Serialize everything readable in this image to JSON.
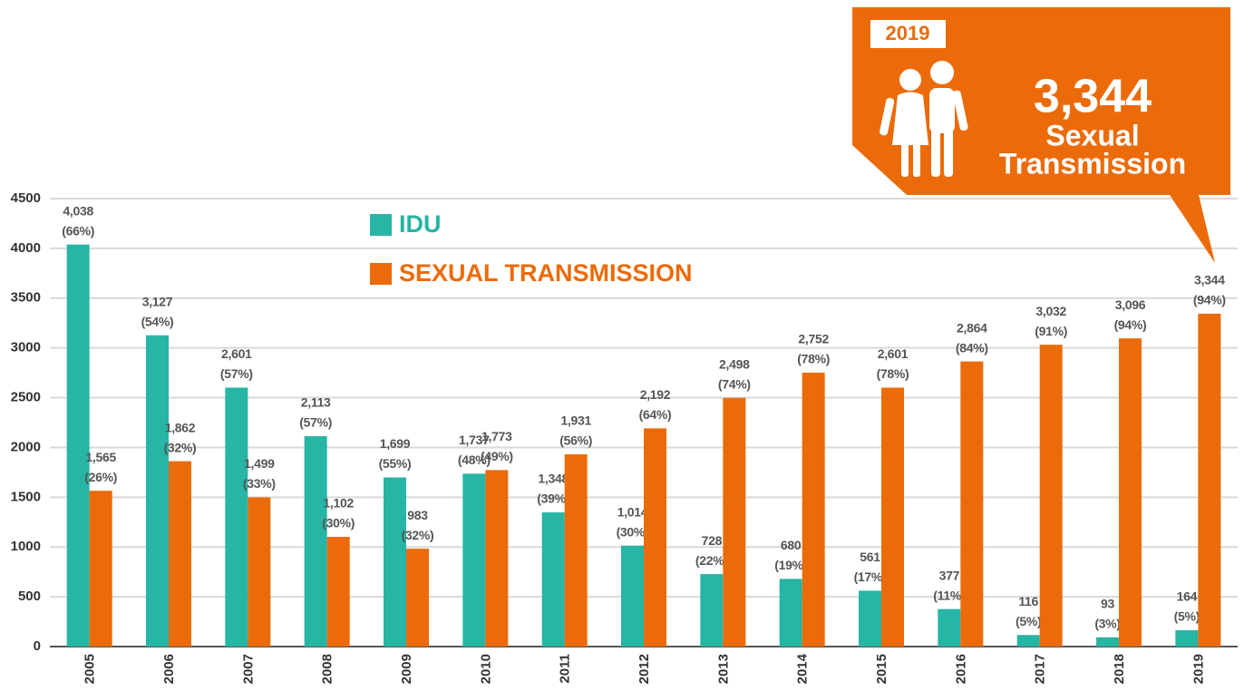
{
  "chart_data": {
    "type": "bar",
    "categories": [
      "2005",
      "2006",
      "2007",
      "2008",
      "2009",
      "2010",
      "2011",
      "2012",
      "2013",
      "2014",
      "2015",
      "2016",
      "2017",
      "2018",
      "2019"
    ],
    "series": [
      {
        "name": "IDU",
        "color": "#27b5a5",
        "values": [
          4038,
          3127,
          2601,
          2113,
          1699,
          1737,
          1348,
          1014,
          728,
          680,
          561,
          377,
          116,
          93,
          164
        ],
        "value_labels": [
          "4,038",
          "3,127",
          "2,601",
          "2,113",
          "1,699",
          "1,737",
          "1,348",
          "1,014",
          "728",
          "680",
          "561",
          "377",
          "116",
          "93",
          "164"
        ],
        "share_labels": [
          "(66%)",
          "(54%)",
          "(57%)",
          "(57%)",
          "(55%)",
          "(48%)",
          "(39%)",
          "(30%)",
          "(22%)",
          "(19%)",
          "(17%)",
          "(11%)",
          "(5%)",
          "(3%)",
          "(5%)"
        ]
      },
      {
        "name": "SEXUAL TRANSMISSION",
        "color": "#eb6b0a",
        "values": [
          1565,
          1862,
          1499,
          1102,
          983,
          1773,
          1931,
          2192,
          2498,
          2752,
          2601,
          2864,
          3032,
          3096,
          3344
        ],
        "value_labels": [
          "1,565",
          "1,862",
          "1,499",
          "1,102",
          "983",
          "1,773",
          "1,931",
          "2,192",
          "2,498",
          "2,752",
          "2,601",
          "2,864",
          "3,032",
          "3,096",
          "3,344"
        ],
        "share_labels": [
          "(26%)",
          "(32%)",
          "(33%)",
          "(30%)",
          "(32%)",
          "(49%)",
          "(56%)",
          "(64%)",
          "(74%)",
          "(78%)",
          "(78%)",
          "(84%)",
          "(91%)",
          "(94%)",
          "(94%)"
        ]
      }
    ],
    "ylim": [
      0,
      4500
    ],
    "yticks": [
      0,
      500,
      1000,
      1500,
      2000,
      2500,
      3000,
      3500,
      4000,
      4500
    ],
    "grid": true,
    "annotation": {
      "year": "2019",
      "value": "3,344",
      "line1": "Sexual",
      "line2": "Transmission"
    }
  }
}
